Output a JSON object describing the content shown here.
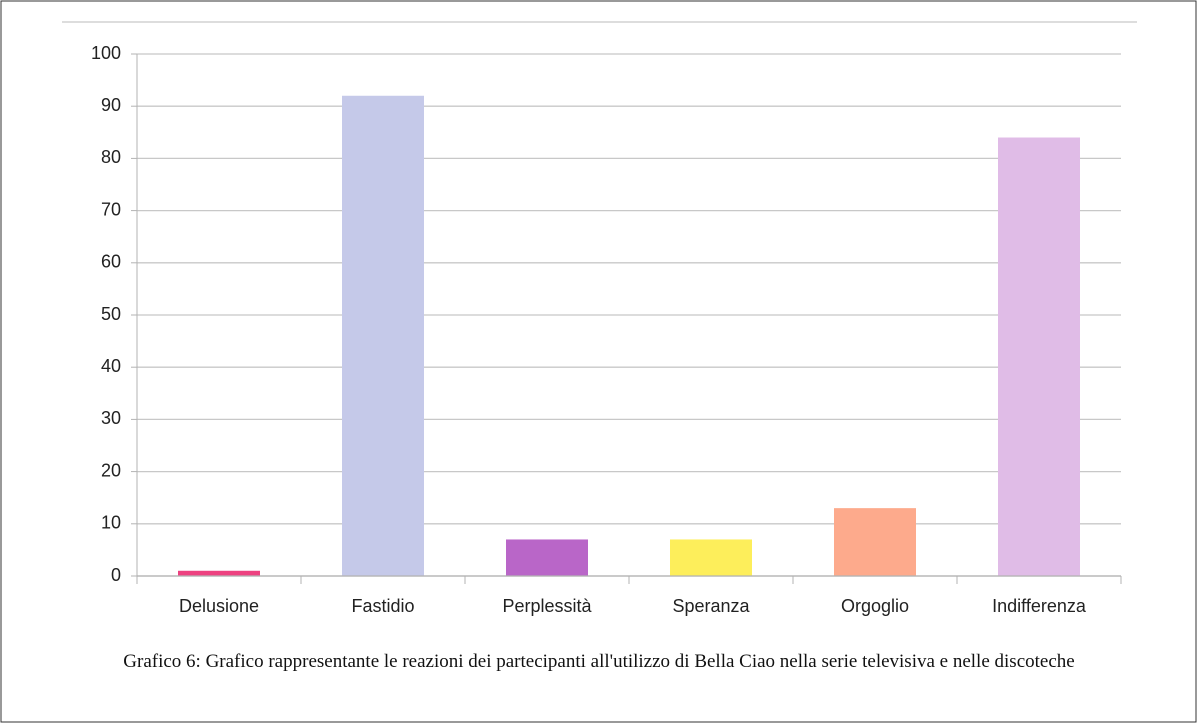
{
  "chart_data": {
    "type": "bar",
    "categories": [
      "Delusione",
      "Fastidio",
      "Perplessità",
      "Speranza",
      "Orgoglio",
      "Indifferenza"
    ],
    "values": [
      1,
      92,
      7,
      7,
      13,
      84
    ],
    "colors": [
      "#ed4180",
      "#c5c9e9",
      "#b966c8",
      "#fdee5b",
      "#fdaa8c",
      "#e0bce7"
    ],
    "ylim": [
      0,
      100
    ],
    "yticks": [
      0,
      10,
      20,
      30,
      40,
      50,
      60,
      70,
      80,
      90,
      100
    ],
    "grid": true,
    "caption": "Grafico 6: Grafico rappresentante le reazioni dei partecipanti all'utilizzo di Bella Ciao nella serie televisiva e nelle discoteche"
  }
}
